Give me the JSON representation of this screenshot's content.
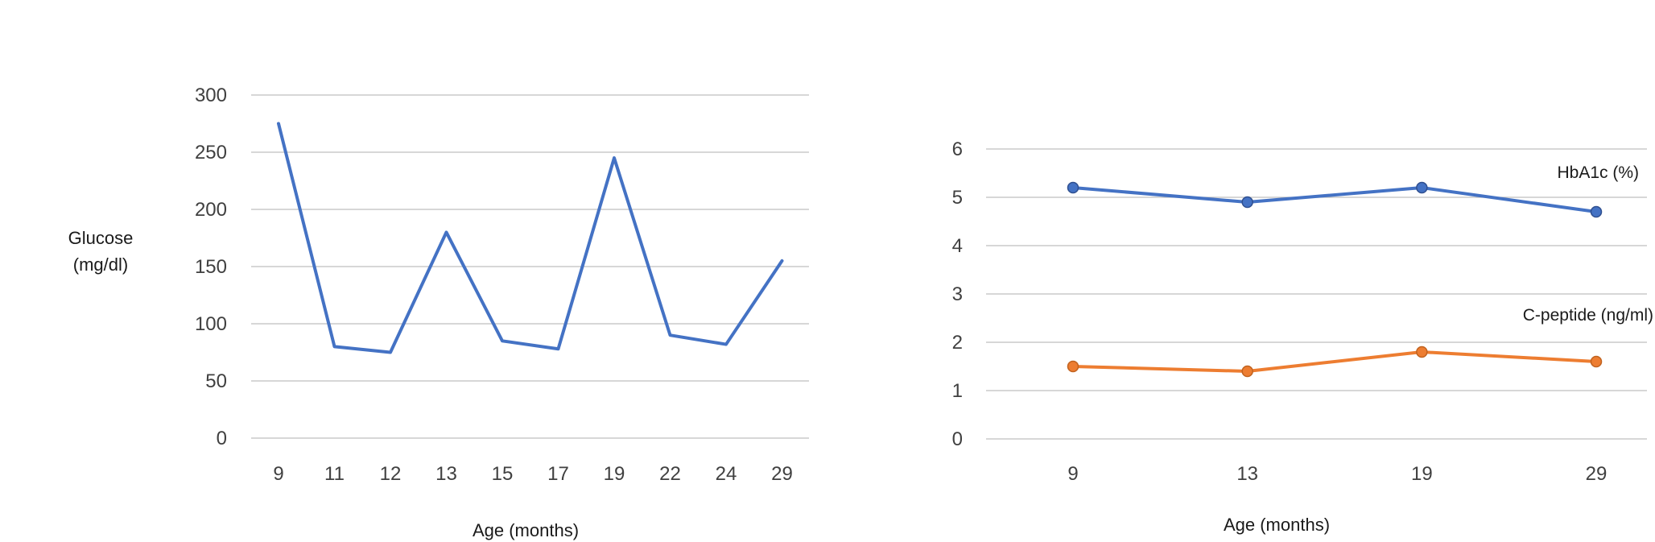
{
  "chart_data": [
    {
      "type": "line",
      "categories": [
        "9",
        "11",
        "12",
        "13",
        "15",
        "17",
        "19",
        "22",
        "24",
        "29"
      ],
      "series": [
        {
          "name": "",
          "values": [
            275,
            80,
            75,
            180,
            85,
            78,
            245,
            90,
            82,
            155
          ],
          "color": "#4472C4"
        }
      ],
      "ylabel_lines": [
        "Glucose",
        "(mg/dl)"
      ],
      "xlabel": "Age (months)",
      "ylim": [
        0,
        300
      ],
      "yticks": [
        0,
        50,
        100,
        150,
        200,
        250,
        300
      ],
      "grid": true,
      "markers": false
    },
    {
      "type": "line",
      "categories": [
        "9",
        "13",
        "19",
        "29"
      ],
      "series": [
        {
          "name": "HbA1c (%)",
          "values": [
            5.2,
            4.9,
            5.2,
            4.7
          ],
          "color": "#4472C4"
        },
        {
          "name": "C-peptide (ng/ml)",
          "values": [
            1.5,
            1.4,
            1.8,
            1.6
          ],
          "color": "#ED7D31"
        }
      ],
      "xlabel": "Age (months)",
      "ylim": [
        0,
        6
      ],
      "yticks": [
        0,
        1,
        2,
        3,
        4,
        5,
        6
      ],
      "grid": true,
      "markers": true
    }
  ]
}
